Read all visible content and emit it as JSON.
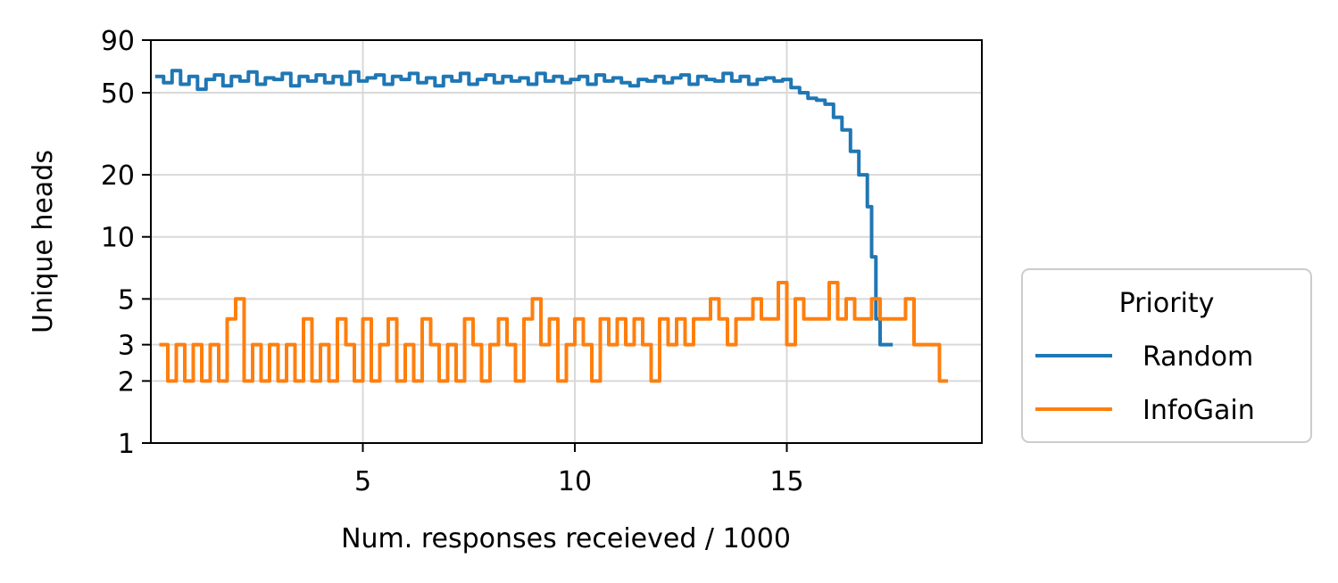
{
  "chart_data": {
    "type": "line",
    "title": "",
    "xlabel": "Num. responses receieved / 1000",
    "ylabel": "Unique heads",
    "xlim": [
      0,
      19.6
    ],
    "ylim": [
      1,
      90
    ],
    "yscale": "log",
    "grid": true,
    "x_ticks": [
      5,
      10,
      15
    ],
    "x_tick_labels": [
      "5",
      "10",
      "15"
    ],
    "y_ticks": [
      1,
      2,
      3,
      5,
      10,
      20,
      50,
      90
    ],
    "y_tick_labels": [
      "1",
      "2",
      "3",
      "5",
      "10",
      "20",
      "50",
      "90"
    ],
    "legend": {
      "title": "Priority",
      "placement": "outside-right-bottom"
    },
    "series": [
      {
        "name": "Random",
        "color": "#1f77b4",
        "x": [
          0.1,
          0.3,
          0.5,
          0.7,
          0.9,
          1.1,
          1.3,
          1.5,
          1.7,
          1.9,
          2.1,
          2.3,
          2.5,
          2.7,
          2.9,
          3.1,
          3.3,
          3.5,
          3.7,
          3.9,
          4.1,
          4.3,
          4.5,
          4.7,
          4.9,
          5.1,
          5.3,
          5.5,
          5.7,
          5.9,
          6.1,
          6.3,
          6.5,
          6.7,
          6.9,
          7.1,
          7.3,
          7.5,
          7.7,
          7.9,
          8.1,
          8.3,
          8.5,
          8.7,
          8.9,
          9.1,
          9.3,
          9.5,
          9.7,
          9.9,
          10.1,
          10.3,
          10.5,
          10.7,
          10.9,
          11.1,
          11.3,
          11.5,
          11.7,
          11.9,
          12.1,
          12.3,
          12.5,
          12.7,
          12.9,
          13.1,
          13.3,
          13.5,
          13.7,
          13.9,
          14.1,
          14.3,
          14.5,
          14.7,
          14.9,
          15.1,
          15.3,
          15.5,
          15.7,
          15.9,
          16.1,
          16.3,
          16.5,
          16.7,
          16.9,
          17.0,
          17.1,
          17.2,
          17.3,
          17.4,
          17.5
        ],
        "values": [
          60,
          56,
          64,
          55,
          60,
          52,
          58,
          61,
          54,
          60,
          57,
          63,
          55,
          59,
          58,
          62,
          54,
          60,
          57,
          61,
          56,
          60,
          55,
          63,
          57,
          59,
          61,
          55,
          60,
          58,
          62,
          56,
          59,
          54,
          60,
          57,
          62,
          55,
          58,
          61,
          56,
          60,
          57,
          59,
          55,
          62,
          57,
          60,
          56,
          58,
          60,
          55,
          61,
          57,
          59,
          56,
          54,
          58,
          57,
          60,
          56,
          59,
          61,
          55,
          60,
          58,
          57,
          62,
          57,
          60,
          55,
          58,
          59,
          57,
          58,
          53,
          50,
          47,
          46,
          44,
          38,
          33,
          26,
          20,
          14,
          8,
          4,
          3,
          3,
          3,
          3
        ]
      },
      {
        "name": "InfoGain",
        "color": "#ff7f0e",
        "x": [
          0.2,
          0.4,
          0.6,
          0.8,
          1.0,
          1.2,
          1.4,
          1.6,
          1.8,
          2.0,
          2.2,
          2.4,
          2.6,
          2.8,
          3.0,
          3.2,
          3.4,
          3.6,
          3.8,
          4.0,
          4.2,
          4.4,
          4.6,
          4.8,
          5.0,
          5.2,
          5.4,
          5.6,
          5.8,
          6.0,
          6.2,
          6.4,
          6.6,
          6.8,
          7.0,
          7.2,
          7.4,
          7.6,
          7.8,
          8.0,
          8.2,
          8.4,
          8.6,
          8.8,
          9.0,
          9.2,
          9.4,
          9.6,
          9.8,
          10.0,
          10.2,
          10.4,
          10.6,
          10.8,
          11.0,
          11.2,
          11.4,
          11.6,
          11.8,
          12.0,
          12.2,
          12.4,
          12.6,
          12.8,
          13.0,
          13.2,
          13.4,
          13.6,
          13.8,
          14.0,
          14.2,
          14.4,
          14.6,
          14.8,
          15.0,
          15.2,
          15.4,
          15.6,
          15.8,
          16.0,
          16.2,
          16.4,
          16.6,
          16.8,
          17.0,
          17.2,
          17.4,
          17.6,
          17.8,
          18.0,
          18.2,
          18.4,
          18.6,
          18.8
        ],
        "values": [
          3,
          2,
          3,
          2,
          3,
          2,
          3,
          2,
          4,
          5,
          2,
          3,
          2,
          3,
          2,
          3,
          2,
          4,
          2,
          3,
          2,
          4,
          3,
          2,
          4,
          2,
          3,
          4,
          2,
          3,
          2,
          4,
          3,
          2,
          3,
          2,
          4,
          3,
          2,
          3,
          4,
          3,
          2,
          4,
          5,
          3,
          4,
          2,
          3,
          4,
          3,
          2,
          4,
          3,
          4,
          3,
          4,
          3,
          2,
          4,
          3,
          4,
          3,
          4,
          4,
          5,
          4,
          3,
          4,
          4,
          5,
          4,
          4,
          6,
          3,
          5,
          4,
          4,
          4,
          6,
          4,
          5,
          4,
          4,
          5,
          4,
          4,
          4,
          5,
          3,
          3,
          3,
          2,
          2
        ]
      }
    ]
  }
}
